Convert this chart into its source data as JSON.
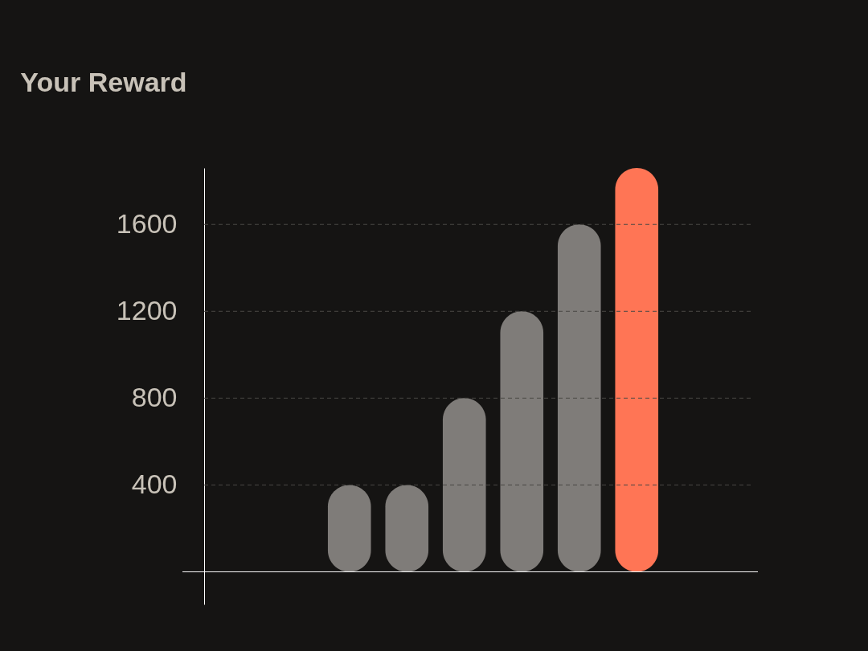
{
  "chart_data": {
    "type": "bar",
    "title": "Your Reward",
    "categories": [
      null,
      null,
      null,
      null,
      null,
      null
    ],
    "values": [
      400,
      400,
      800,
      1200,
      1600,
      1860
    ],
    "colors": [
      "#7f7c79",
      "#7f7c79",
      "#7f7c79",
      "#7f7c79",
      "#7f7c79",
      "#ff7555"
    ],
    "ylim": [
      -150,
      1860
    ],
    "yticks": [
      400,
      800,
      1200,
      1600
    ],
    "grid": "y",
    "tick_labels": "y"
  }
}
